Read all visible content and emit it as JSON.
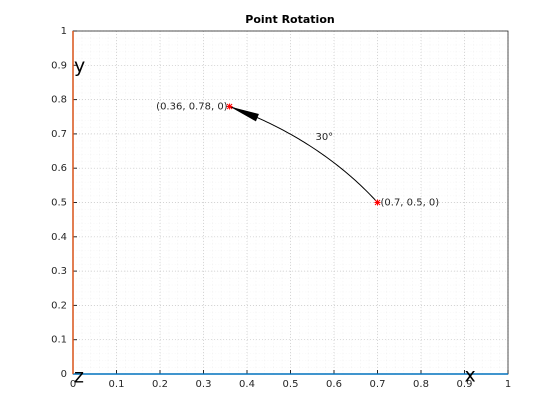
{
  "chart_data": {
    "type": "scatter",
    "title": "Point Rotation",
    "x": [
      0.7,
      0.36
    ],
    "values": [
      0.5,
      0.78
    ],
    "point_labels": [
      "(0.7, 0.5, 0)",
      "(0.36, 0.78, 0)"
    ],
    "angle_label": "30°",
    "color": "#ff0000",
    "axis_labels": {
      "x": "x",
      "y": "y",
      "z": "z"
    },
    "x_axis_color": "#0072bd",
    "y_axis_color": "#d95319",
    "xlim": [
      0,
      1
    ],
    "ylim": [
      0,
      1
    ],
    "xticks": [
      0,
      0.1,
      0.2,
      0.3,
      0.4,
      0.5,
      0.6,
      0.7,
      0.8,
      0.9,
      1
    ],
    "yticks": [
      0,
      0.1,
      0.2,
      0.3,
      0.4,
      0.5,
      0.6,
      0.7,
      0.8,
      0.9,
      1
    ],
    "grid": true
  }
}
